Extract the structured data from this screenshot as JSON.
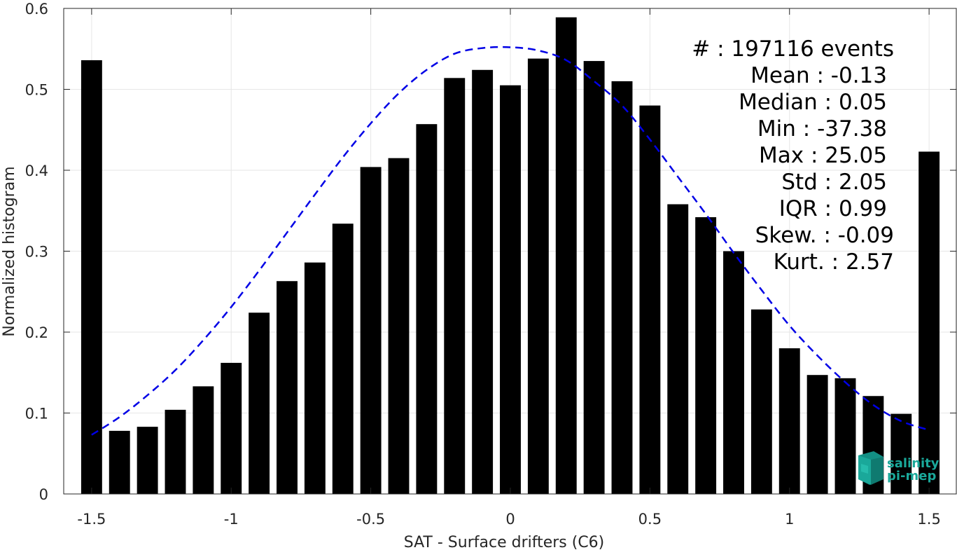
{
  "chart_data": {
    "type": "bar",
    "xlabel": "SAT - Surface drifters (C6)",
    "ylabel": "Normalized histogram",
    "xlim": [
      -1.6,
      1.6
    ],
    "ylim": [
      0,
      0.6
    ],
    "grid": true,
    "x_ticks": [
      -1.5,
      -1,
      -0.5,
      0,
      0.5,
      1,
      1.5
    ],
    "x_tick_labels": [
      "-1.5",
      "-1",
      "-0.5",
      "0",
      "0.5",
      "1",
      "1.5"
    ],
    "y_ticks": [
      0,
      0.1,
      0.2,
      0.3,
      0.4,
      0.5,
      0.6
    ],
    "y_tick_labels": [
      "0",
      "0.1",
      "0.2",
      "0.3",
      "0.4",
      "0.5",
      "0.6"
    ],
    "bar_color": "#000000",
    "bar_width": 0.075,
    "series": [
      {
        "x": [
          -1.5,
          -1.4,
          -1.3,
          -1.2,
          -1.1,
          -1.0,
          -0.9,
          -0.8,
          -0.7,
          -0.6,
          -0.5,
          -0.4,
          -0.3,
          -0.2,
          -0.1,
          0.0,
          0.1,
          0.2,
          0.3,
          0.4,
          0.5,
          0.6,
          0.7,
          0.8,
          0.9,
          1.0,
          1.1,
          1.2,
          1.3,
          1.4,
          1.5
        ],
        "values": [
          0.536,
          0.078,
          0.083,
          0.104,
          0.133,
          0.162,
          0.224,
          0.263,
          0.286,
          0.334,
          0.404,
          0.415,
          0.457,
          0.514,
          0.524,
          0.505,
          0.538,
          0.589,
          0.535,
          0.51,
          0.48,
          0.358,
          0.342,
          0.3,
          0.228,
          0.18,
          0.147,
          0.143,
          0.121,
          0.099,
          0.423
        ]
      }
    ],
    "fit_curve": {
      "style": "dashed",
      "color": "#0000e6",
      "x": [
        -1.5,
        -1.4,
        -1.3,
        -1.2,
        -1.1,
        -1.0,
        -0.9,
        -0.8,
        -0.7,
        -0.6,
        -0.5,
        -0.4,
        -0.3,
        -0.2,
        -0.1,
        0.0,
        0.1,
        0.2,
        0.3,
        0.4,
        0.5,
        0.6,
        0.7,
        0.8,
        0.9,
        1.0,
        1.1,
        1.2,
        1.3,
        1.4,
        1.5
      ],
      "y": [
        0.073,
        0.095,
        0.122,
        0.153,
        0.19,
        0.231,
        0.276,
        0.323,
        0.37,
        0.416,
        0.458,
        0.495,
        0.524,
        0.544,
        0.551,
        0.552,
        0.548,
        0.536,
        0.51,
        0.48,
        0.438,
        0.392,
        0.346,
        0.298,
        0.252,
        0.208,
        0.171,
        0.138,
        0.11,
        0.09,
        0.079
      ]
    },
    "annotations": [
      "#  : 197116 events",
      "Mean : -0.13",
      "Median : 0.05",
      "Min : -37.38",
      "Max : 25.05",
      "Std : 2.05",
      "IQR : 0.99",
      "Skew. : -0.09",
      "Kurt. : 2.57"
    ]
  },
  "logo": {
    "line1": "salinity",
    "line2": "pi-mep",
    "color": "#1aa89a"
  }
}
